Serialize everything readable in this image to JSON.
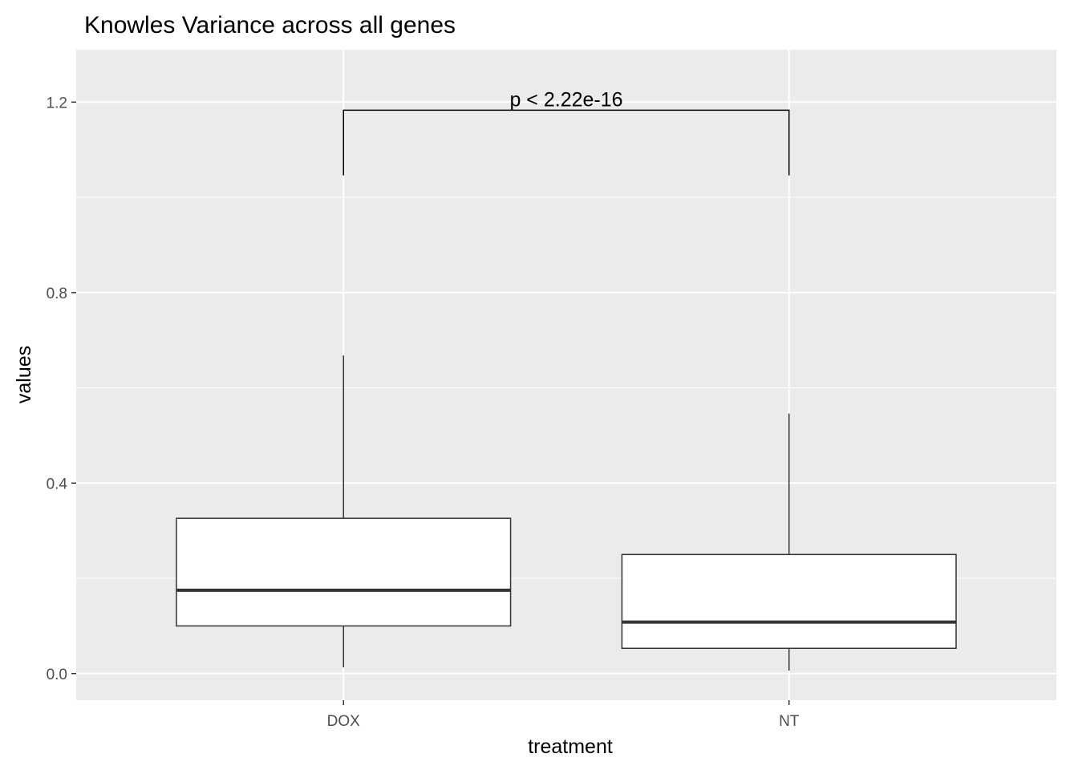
{
  "chart_data": {
    "type": "boxplot",
    "title": "Knowles Variance across all genes",
    "xlabel": "treatment",
    "ylabel": "values",
    "categories": [
      "DOX",
      "NT"
    ],
    "boxes": [
      {
        "category": "DOX",
        "whisker_low": 0.013,
        "q1": 0.1,
        "median": 0.175,
        "q3": 0.326,
        "whisker_high": 0.668
      },
      {
        "category": "NT",
        "whisker_low": 0.006,
        "q1": 0.053,
        "median": 0.108,
        "q3": 0.25,
        "whisker_high": 0.546
      }
    ],
    "ylim": [
      -0.056,
      1.31
    ],
    "y_ticks": [
      0.0,
      0.4,
      0.8,
      1.2
    ],
    "y_tick_labels": [
      "0.0",
      "0.4",
      "0.8",
      "1.2"
    ],
    "grid": true,
    "comparison": {
      "from": "DOX",
      "to": "NT",
      "y": 1.183,
      "tip_low": 1.046,
      "label": "p < 2.22e-16"
    },
    "colors": {
      "panel": "#ebebeb",
      "grid": "#ffffff",
      "box_fill": "#ffffff",
      "box_line": "#333333",
      "tick": "#333333",
      "text": "#000000"
    }
  }
}
